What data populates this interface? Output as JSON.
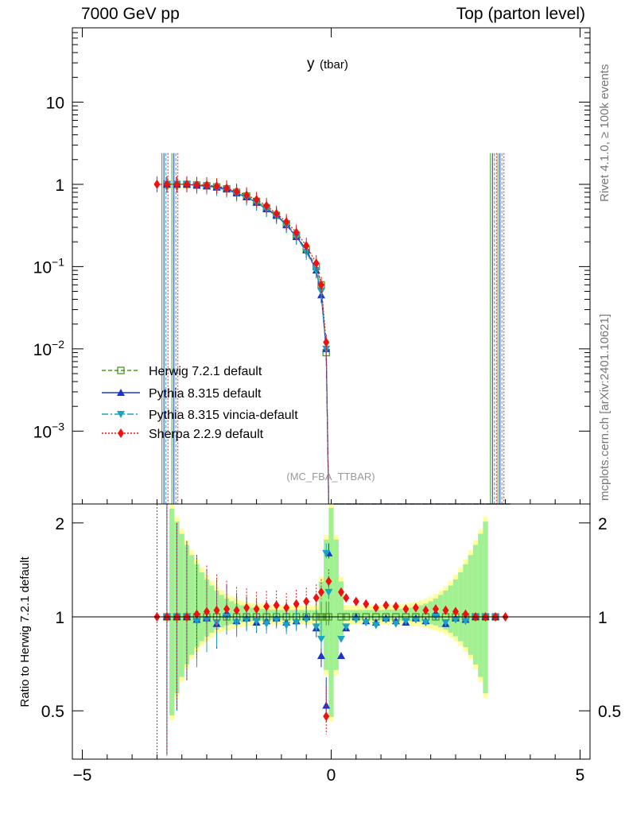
{
  "header": {
    "energy_label": "7000 GeV pp",
    "process_label": "Top (parton level)"
  },
  "side": {
    "rivet_label": "Rivet 4.1.0, ≥ 100k events",
    "mcplots_label": "mcplots.cern.ch [arXiv:2401.10621]"
  },
  "chart_data": {
    "type": "line",
    "title": "y",
    "title_sub": "(tbar)",
    "analysis_label": "(MC_FBA_TTBAR)",
    "xlabel": "",
    "ylabel": "",
    "xlim": [
      -5.2,
      5.2
    ],
    "ylim": [
      0.00013,
      80
    ],
    "yscale": "log",
    "x_ticks": [
      "−5",
      "0",
      "5"
    ],
    "y_ticks": [
      "10^{-3}",
      "10^{-2}",
      "10^{-1}",
      "1",
      "10"
    ],
    "ratio": {
      "ylabel": "Ratio to Herwig 7.2.1 default",
      "ylim": [
        0.35,
        2.3
      ],
      "y_ticks": [
        "0.5",
        "1",
        "2"
      ]
    },
    "series": [
      {
        "name": "Herwig 7.2.1 default",
        "color": "#4a9a2a",
        "marker": "open-square",
        "line": "dashed",
        "x": [
          -3.3,
          -3.1,
          -2.9,
          -2.7,
          -2.5,
          -2.3,
          -2.1,
          -1.9,
          -1.7,
          -1.5,
          -1.3,
          -1.1,
          -0.9,
          -0.7,
          -0.5,
          -0.3,
          -0.2,
          -0.1,
          -0.05
        ],
        "values": [
          1.0,
          1.0,
          1.0,
          0.98,
          0.96,
          0.93,
          0.88,
          0.8,
          0.72,
          0.62,
          0.52,
          0.42,
          0.33,
          0.24,
          0.16,
          0.1,
          0.06,
          0.009,
          0.0001
        ],
        "ratio": [
          1,
          1,
          1,
          1,
          1,
          1,
          1,
          1,
          1,
          1,
          1,
          1,
          1,
          1,
          1,
          1,
          1,
          1,
          1
        ]
      },
      {
        "name": "Pythia 8.315 default",
        "color": "#1f35c8",
        "marker": "triangle-up",
        "line": "solid",
        "x": [
          -3.3,
          -3.1,
          -2.9,
          -2.7,
          -2.5,
          -2.3,
          -2.1,
          -1.9,
          -1.7,
          -1.5,
          -1.3,
          -1.1,
          -0.9,
          -0.7,
          -0.5,
          -0.3,
          -0.2,
          -0.1,
          -0.05
        ],
        "values": [
          1.0,
          1.0,
          1.0,
          0.97,
          0.95,
          0.92,
          0.88,
          0.78,
          0.7,
          0.6,
          0.5,
          0.42,
          0.32,
          0.23,
          0.16,
          0.09,
          0.045,
          0.01,
          0.0001
        ],
        "ratio": [
          1,
          1,
          1,
          0.98,
          0.99,
          0.95,
          1.03,
          0.97,
          0.99,
          0.96,
          0.97,
          0.99,
          0.96,
          0.97,
          1.0,
          0.92,
          0.75,
          0.52,
          1.6
        ]
      },
      {
        "name": "Pythia 8.315 vincia-default",
        "color": "#1aa4c4",
        "marker": "triangle-down",
        "line": "dashdot",
        "x": [
          -3.3,
          -3.1,
          -2.9,
          -2.7,
          -2.5,
          -2.3,
          -2.1,
          -1.9,
          -1.7,
          -1.5,
          -1.3,
          -1.1,
          -0.9,
          -0.7,
          -0.5,
          -0.3,
          -0.2,
          -0.1,
          -0.05
        ],
        "values": [
          1.0,
          1.0,
          1.0,
          0.96,
          0.94,
          0.9,
          0.86,
          0.77,
          0.69,
          0.6,
          0.5,
          0.41,
          0.32,
          0.23,
          0.15,
          0.09,
          0.05,
          0.01,
          0.0001
        ],
        "ratio": [
          1,
          1,
          1,
          0.97,
          0.98,
          0.96,
          1.0,
          0.96,
          0.98,
          0.97,
          0.95,
          0.98,
          0.94,
          0.96,
          0.98,
          0.93,
          0.85,
          1.6,
          1.2
        ]
      },
      {
        "name": "Sherpa 2.2.9 default",
        "color": "#ee1111",
        "marker": "diamond",
        "line": "dotted",
        "x": [
          -3.5,
          -3.3,
          -3.1,
          -2.9,
          -2.7,
          -2.5,
          -2.3,
          -2.1,
          -1.9,
          -1.7,
          -1.5,
          -1.3,
          -1.1,
          -0.9,
          -0.7,
          -0.5,
          -0.3,
          -0.2,
          -0.1,
          -0.05
        ],
        "values": [
          1.0,
          1.0,
          1.0,
          1.0,
          0.99,
          0.98,
          0.95,
          0.9,
          0.82,
          0.74,
          0.65,
          0.55,
          0.44,
          0.35,
          0.26,
          0.18,
          0.11,
          0.06,
          0.012,
          0.0001
        ],
        "ratio": [
          1,
          1,
          1,
          1,
          1.02,
          1.04,
          1.05,
          1.06,
          1.05,
          1.07,
          1.06,
          1.08,
          1.09,
          1.07,
          1.1,
          1.12,
          1.15,
          1.2,
          0.48,
          1.3
        ]
      }
    ]
  }
}
